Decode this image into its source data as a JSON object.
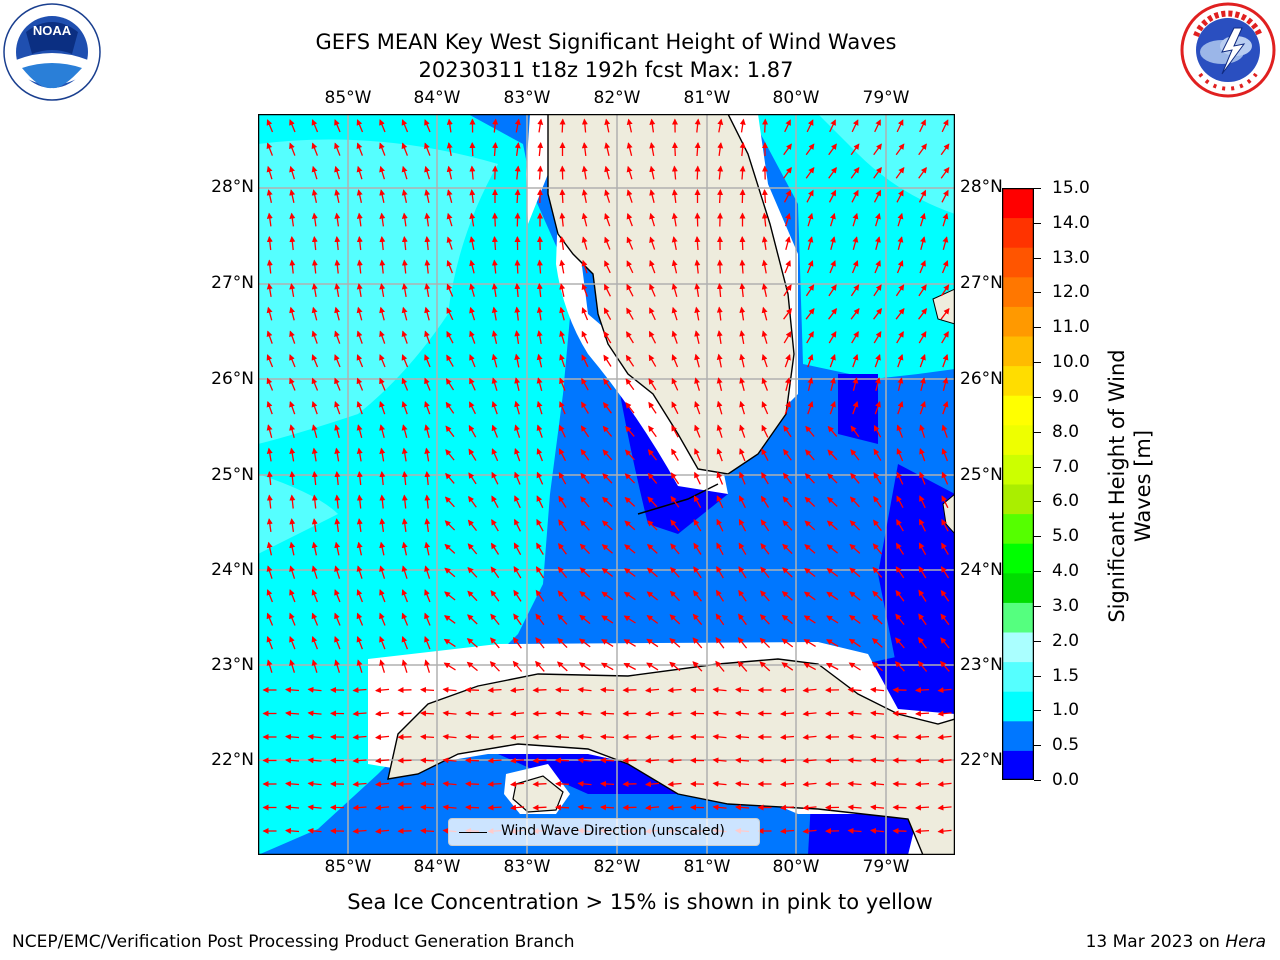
{
  "title": {
    "line1": "GEFS MEAN Key West Significant Height of Wind Waves",
    "line2": "20230311 t18z 192h fcst   Max: 1.87"
  },
  "map": {
    "lon_labels": [
      "85°W",
      "84°W",
      "83°W",
      "82°W",
      "81°W",
      "80°W",
      "79°W"
    ],
    "lat_labels": [
      "28°N",
      "27°N",
      "26°N",
      "25°N",
      "24°N",
      "23°N",
      "22°N"
    ],
    "land_color": "#eeecdd",
    "arrow_color": "#ff0000",
    "grid": true,
    "legend": {
      "label": "Wind Wave Direction (unscaled)",
      "placement": "bottom-center"
    }
  },
  "colorbar": {
    "title": "Significant Height of Wind Waves [m]",
    "ticks": [
      "15.0",
      "14.0",
      "13.0",
      "12.0",
      "11.0",
      "10.0",
      "9.0",
      "8.0",
      "7.0",
      "6.0",
      "5.0",
      "4.0",
      "3.0",
      "2.0",
      "1.5",
      "1.0",
      "0.5",
      "0.0"
    ],
    "colors": [
      "#0000ff",
      "#0077ff",
      "#00ffff",
      "#55ffff",
      "#aaffff",
      "#55ff7f",
      "#00dd00",
      "#00ff00",
      "#55ff00",
      "#aaee00",
      "#ccff00",
      "#eeff00",
      "#ffff00",
      "#ffdd00",
      "#ffbb00",
      "#ff9900",
      "#ff7700",
      "#ff5500",
      "#ff3300",
      "#ff0000"
    ]
  },
  "logos": {
    "noaa": {
      "center": "NOAA",
      "ring": "NATIONAL OCEANIC AND ATMOSPHERIC ADMINISTRATION • U.S. DEPARTMENT OF COMMERCE"
    },
    "nws": {
      "ring": "NATIONAL WEATHER SERVICE"
    }
  },
  "note": "Sea Ice Concentration > 15% is shown in pink to yellow",
  "footer": {
    "left": "NCEP/EMC/Verification Post Processing Product Generation Branch",
    "right_prefix": "13 Mar 2023 on ",
    "right_host": "Hera"
  }
}
